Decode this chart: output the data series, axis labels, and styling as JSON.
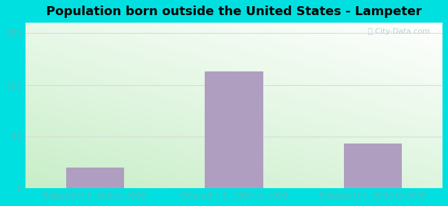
{
  "title": "Population born outside the United States - Lampeter",
  "categories": [
    "Entered U.S. before 1990",
    "Entered U.S. 1990 to 1999",
    "Entered U.S. 2000 to 2009"
  ],
  "values": [
    20,
    113,
    43
  ],
  "bar_color": "#b09ec0",
  "ylim": [
    0,
    160
  ],
  "yticks": [
    0,
    50,
    100,
    150
  ],
  "outer_bg": "#00e0e0",
  "plot_bg_green": "#c8eec8",
  "plot_bg_white": "#ffffff",
  "title_fontsize": 13,
  "tick_label_color": "#5ababa",
  "watermark": "City-Data.com",
  "watermark_color": "#b0c8c8",
  "grid_color": "#d8d8d8",
  "bar_width": 0.42
}
